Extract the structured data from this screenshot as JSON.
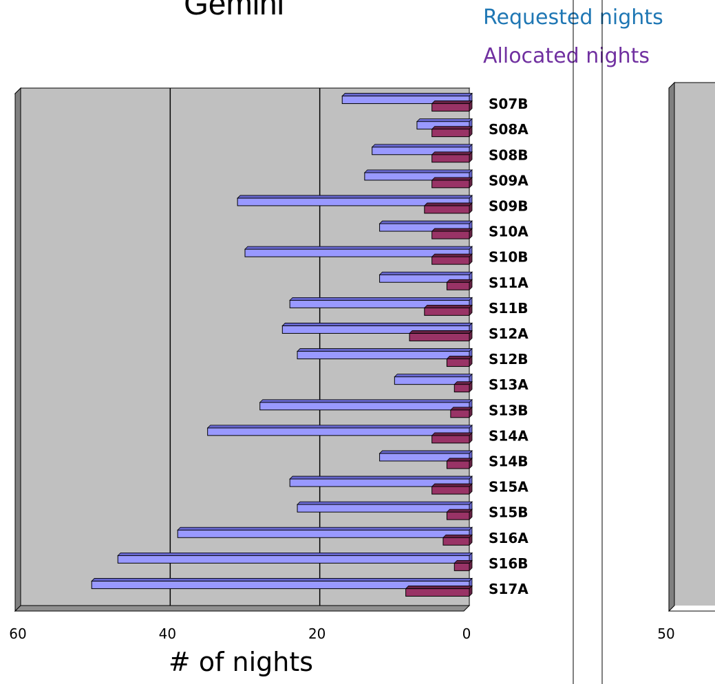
{
  "chart_data": {
    "type": "bar",
    "orientation": "horizontal",
    "title": "Gemini",
    "xlabel": "# of nights",
    "ylabel": "",
    "xlim": [
      0,
      60
    ],
    "x_reversed": true,
    "xticks": [
      "60",
      "40",
      "20",
      "0"
    ],
    "grid": true,
    "legend_position": "top-right",
    "categories": [
      "S07B",
      "S08A",
      "S08B",
      "S09A",
      "S09B",
      "S10A",
      "S10B",
      "S11A",
      "S11B",
      "S12A",
      "S12B",
      "S13A",
      "S13B",
      "S14A",
      "S14B",
      "S15A",
      "S15B",
      "S16A",
      "S16B",
      "S17A"
    ],
    "series": [
      {
        "name": "Requested nights",
        "color": "#9999ff",
        "values": [
          17,
          7,
          13,
          14,
          31,
          12,
          30,
          12,
          24,
          25,
          23,
          10,
          28,
          35,
          12,
          24,
          23,
          39,
          47,
          50.5
        ]
      },
      {
        "name": "Allocated nights",
        "color": "#993366",
        "values": [
          5,
          5,
          5,
          5,
          6,
          5,
          5,
          3,
          6,
          8,
          3,
          2,
          2.5,
          5,
          3,
          5,
          3,
          3.5,
          2,
          8.5
        ]
      }
    ]
  },
  "legend": {
    "requested_color": "#1f77b4",
    "allocated_color": "#7030a0"
  },
  "right_panel": {
    "tick": "50"
  }
}
